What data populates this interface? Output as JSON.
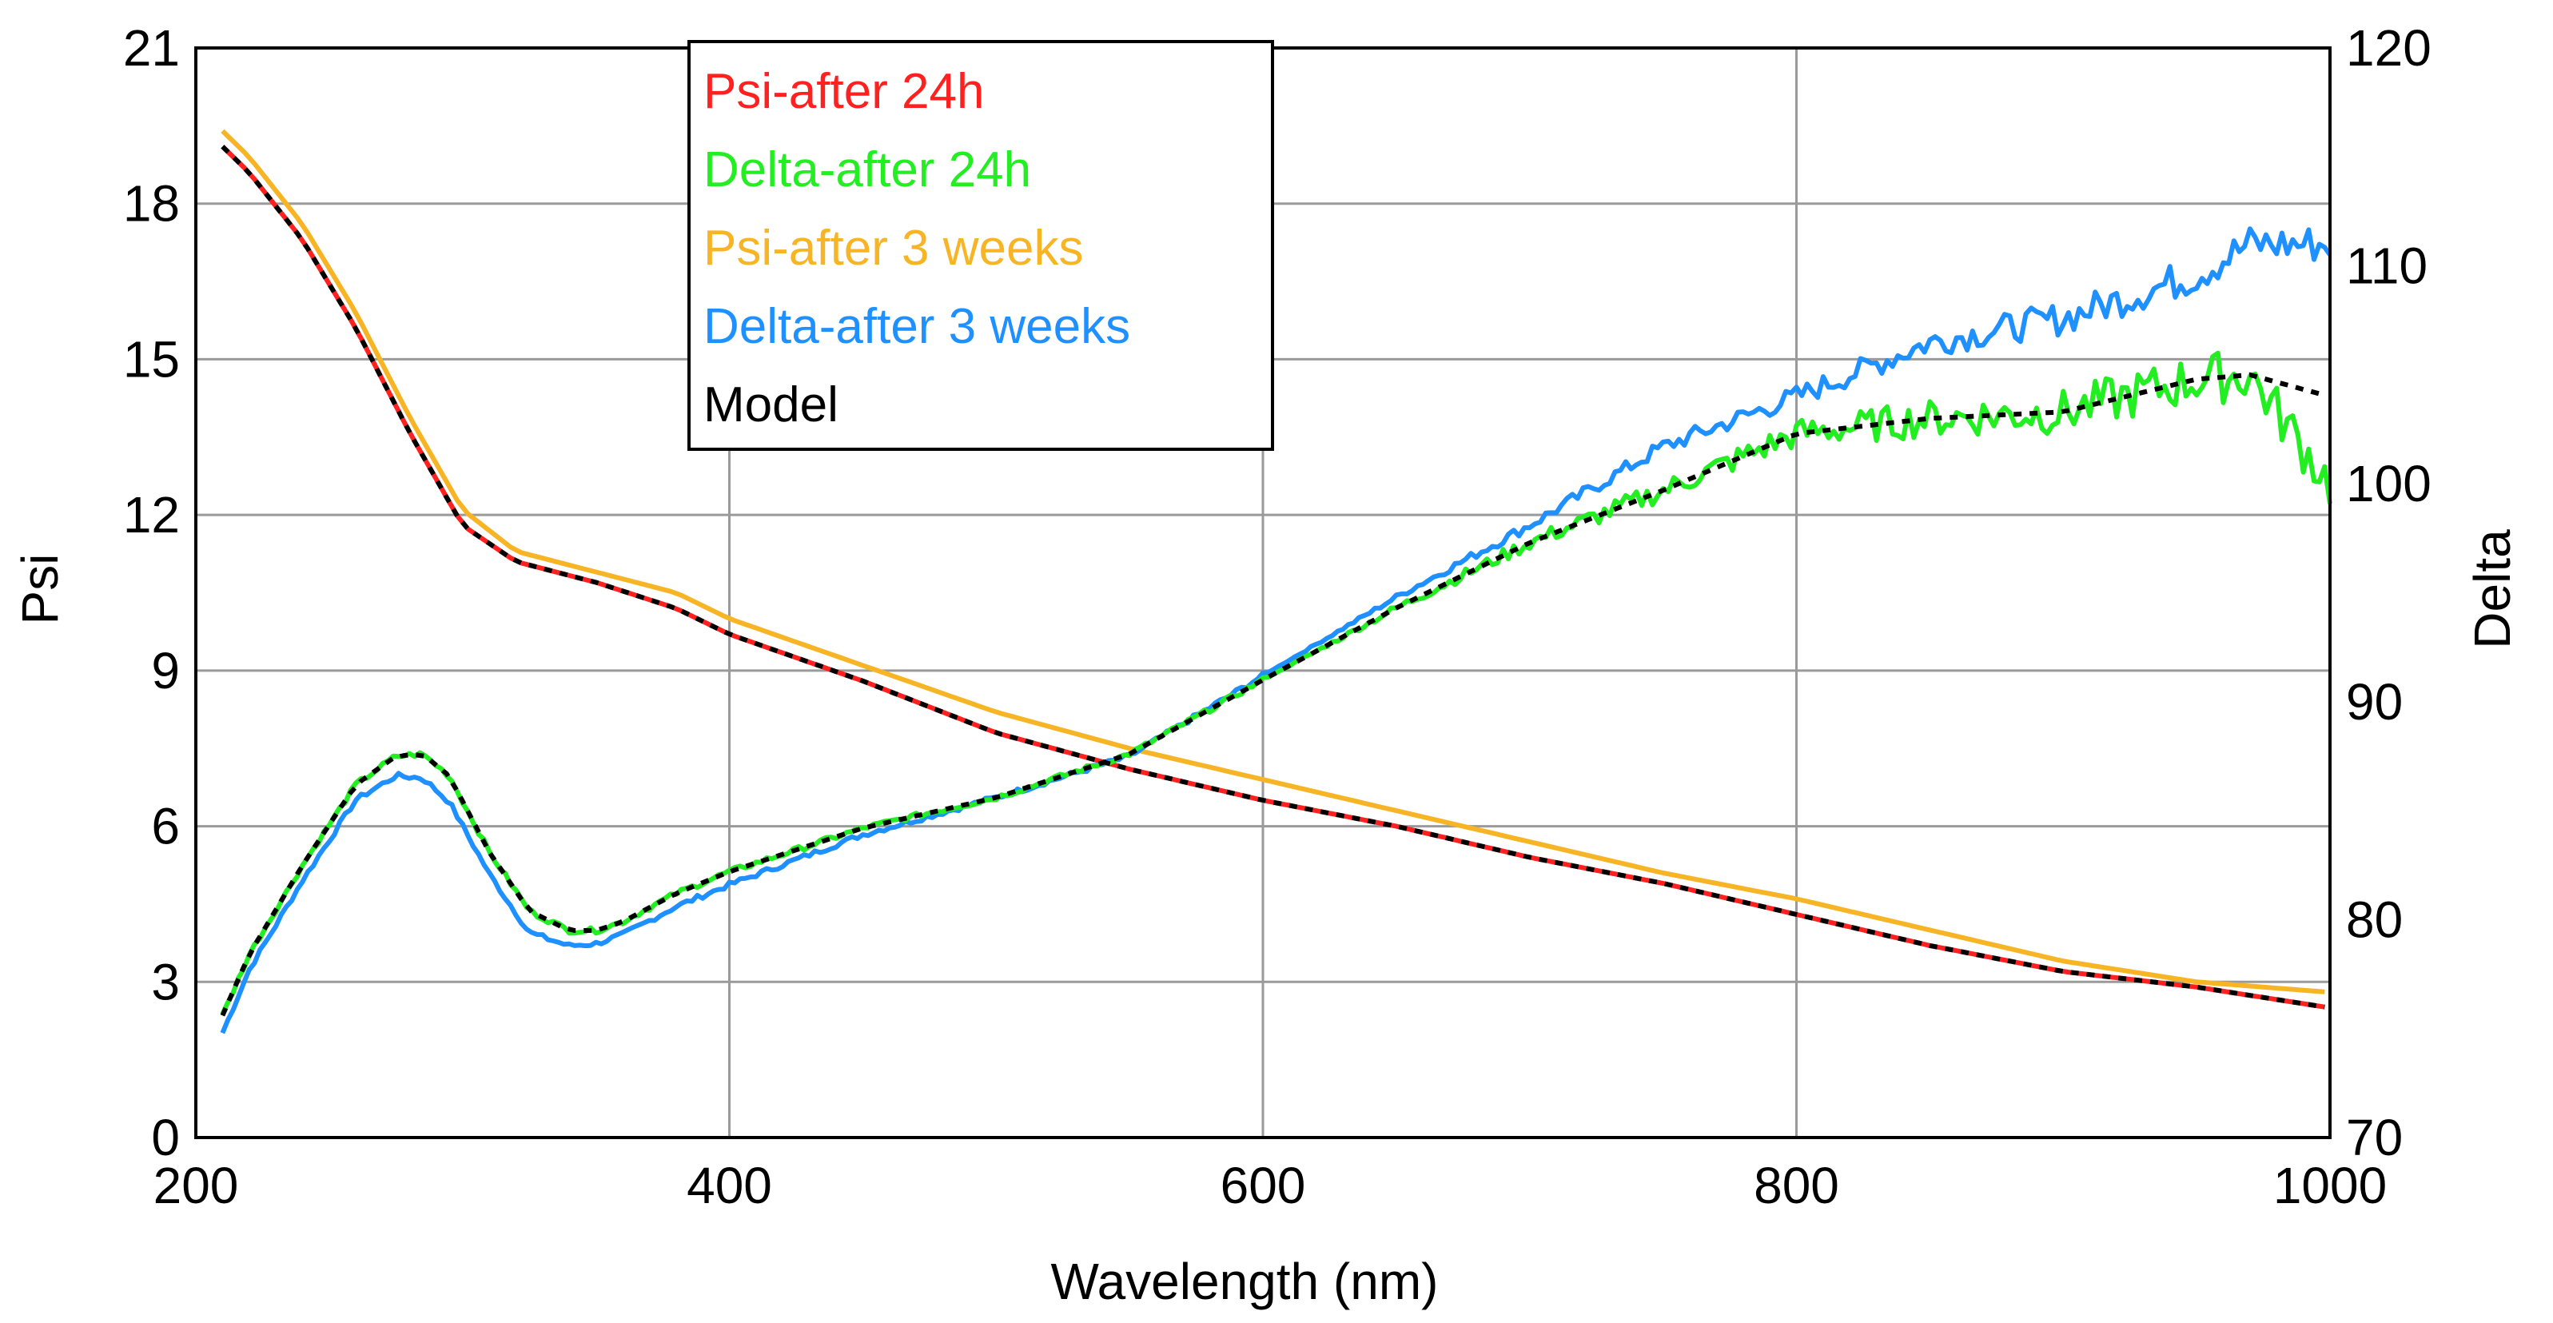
{
  "chart_data": {
    "type": "line",
    "title": "",
    "xlabel": "Wavelength (nm)",
    "ylabel": "Psi",
    "y2label": "Delta",
    "xlim": [
      200,
      1000
    ],
    "ylim": [
      0,
      21
    ],
    "y2lim": [
      70,
      120
    ],
    "xticks": [
      "200",
      "400",
      "600",
      "800",
      "1000"
    ],
    "yticks": [
      "0",
      "3",
      "6",
      "9",
      "12",
      "15",
      "18",
      "21"
    ],
    "y2ticks": [
      "70",
      "80",
      "90",
      "100",
      "110",
      "120"
    ],
    "grid": true,
    "legend_position": "top-center",
    "legend": [
      "Psi-after 24h",
      "Delta-after 24h",
      "Psi-after 3 weeks",
      "Delta-after 3 weeks",
      "Model"
    ],
    "colors": {
      "psi_24h": "#ff2020",
      "delta_24h": "#22ee22",
      "psi_3w": "#f7b526",
      "delta_3w": "#1e90ff",
      "model": "#000000",
      "grid": "#9a9a9a",
      "axis": "#000000"
    },
    "series": [
      {
        "name": "Psi-after 24h",
        "axis": "left",
        "color_key": "psi_24h",
        "x": [
          210,
          220,
          240,
          260,
          280,
          300,
          320,
          350,
          380,
          400,
          450,
          500,
          550,
          600,
          650,
          700,
          750,
          800,
          850,
          900,
          950,
          1000
        ],
        "y": [
          19.1,
          18.6,
          17.3,
          15.6,
          13.6,
          11.8,
          11.1,
          10.7,
          10.2,
          9.7,
          8.8,
          7.8,
          7.1,
          6.5,
          6.0,
          5.4,
          4.9,
          4.3,
          3.7,
          3.2,
          2.9,
          2.5
        ]
      },
      {
        "name": "Delta-after 24h",
        "axis": "right",
        "color_key": "delta_24h",
        "x": [
          210,
          220,
          240,
          260,
          275,
          285,
          295,
          310,
          325,
          340,
          350,
          360,
          380,
          400,
          450,
          500,
          550,
          600,
          650,
          700,
          750,
          800,
          850,
          900,
          950,
          970,
          1000
        ],
        "y": [
          75.6,
          78.4,
          82.5,
          86.2,
          87.5,
          87.6,
          86.6,
          83.1,
          80.4,
          79.5,
          79.5,
          79.9,
          81.2,
          82.2,
          84.2,
          85.6,
          87.6,
          91.0,
          94.3,
          97.3,
          99.7,
          102.3,
          103.0,
          103.3,
          104.8,
          105.0,
          100.0
        ],
        "noise": 1.2
      },
      {
        "name": "Psi-after 3 weeks",
        "axis": "left",
        "color_key": "psi_3w",
        "x": [
          210,
          220,
          240,
          260,
          280,
          300,
          320,
          350,
          380,
          400,
          450,
          500,
          550,
          600,
          650,
          700,
          750,
          800,
          850,
          900,
          950,
          1000
        ],
        "y": [
          19.4,
          18.9,
          17.6,
          15.9,
          13.9,
          12.1,
          11.3,
          10.9,
          10.5,
          10.0,
          9.1,
          8.2,
          7.5,
          6.9,
          6.3,
          5.7,
          5.1,
          4.6,
          4.0,
          3.4,
          3.0,
          2.8
        ]
      },
      {
        "name": "Delta-after 3 weeks",
        "axis": "right",
        "color_key": "delta_3w",
        "x": [
          210,
          220,
          240,
          260,
          275,
          285,
          295,
          310,
          325,
          340,
          350,
          360,
          380,
          400,
          450,
          500,
          550,
          600,
          650,
          700,
          750,
          800,
          850,
          900,
          950,
          970,
          1000
        ],
        "y": [
          74.8,
          77.7,
          81.8,
          85.5,
          86.6,
          86.5,
          85.4,
          82.1,
          79.4,
          78.8,
          78.9,
          79.3,
          80.6,
          81.6,
          83.9,
          85.6,
          87.5,
          91.2,
          94.8,
          98.1,
          101.7,
          104.0,
          106.5,
          107.6,
          109.6,
          111.0,
          111.0
        ],
        "noise": 0.9
      },
      {
        "name": "Model",
        "axis": "both",
        "color_key": "model",
        "dashed": true,
        "psi": {
          "x": [
            210,
            220,
            240,
            260,
            280,
            300,
            320,
            350,
            380,
            400,
            450,
            500,
            550,
            600,
            650,
            700,
            750,
            800,
            850,
            900,
            950,
            1000
          ],
          "y": [
            19.1,
            18.6,
            17.3,
            15.6,
            13.6,
            11.8,
            11.1,
            10.7,
            10.2,
            9.7,
            8.8,
            7.8,
            7.1,
            6.5,
            6.0,
            5.4,
            4.9,
            4.3,
            3.7,
            3.2,
            2.9,
            2.5
          ]
        },
        "delta": {
          "x": [
            210,
            220,
            240,
            260,
            275,
            285,
            295,
            310,
            325,
            340,
            350,
            360,
            380,
            400,
            450,
            500,
            550,
            600,
            650,
            700,
            750,
            800,
            850,
            900,
            950,
            970,
            1000
          ],
          "y": [
            75.6,
            78.4,
            82.5,
            86.2,
            87.5,
            87.6,
            86.6,
            83.1,
            80.4,
            79.5,
            79.5,
            79.9,
            81.2,
            82.2,
            84.2,
            85.6,
            87.6,
            91.0,
            94.3,
            97.3,
            99.7,
            102.3,
            103.0,
            103.3,
            104.8,
            105.0,
            104.0
          ]
        }
      }
    ]
  }
}
